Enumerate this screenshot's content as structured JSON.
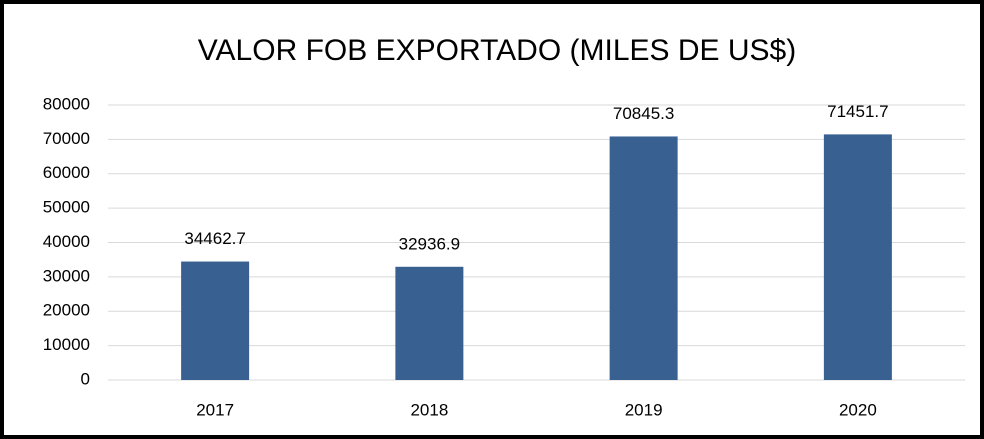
{
  "chart_data": {
    "type": "bar",
    "title": "VALOR FOB EXPORTADO (MILES DE US$)",
    "categories": [
      "2017",
      "2018",
      "2019",
      "2020"
    ],
    "values": [
      34462.7,
      32936.9,
      70845.3,
      71451.7
    ],
    "color": "#386192",
    "ylim": [
      0,
      80000
    ],
    "yticks": [
      0,
      10000,
      20000,
      30000,
      40000,
      50000,
      60000,
      70000,
      80000
    ],
    "grid": true
  }
}
